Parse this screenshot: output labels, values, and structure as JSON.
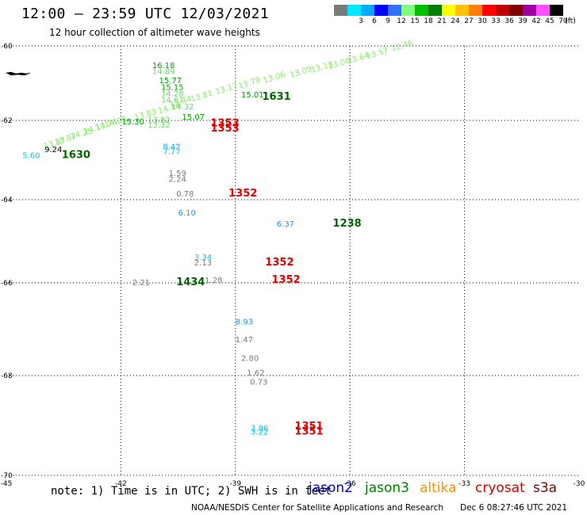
{
  "title": "12:00 – 23:59 UTC 12/03/2021",
  "subtitle": "12 hour collection of altimeter wave heights",
  "color_scale": {
    "unit": "(ft)",
    "bins": [
      {
        "label": "",
        "color": "#7a7a7a"
      },
      {
        "label": "3",
        "color": "#00e8ff"
      },
      {
        "label": "6",
        "color": "#00aaff"
      },
      {
        "label": "9",
        "color": "#0000ff"
      },
      {
        "label": "12",
        "color": "#3070ff"
      },
      {
        "label": "15",
        "color": "#80ff80"
      },
      {
        "label": "18",
        "color": "#00c000"
      },
      {
        "label": "21",
        "color": "#008000"
      },
      {
        "label": "24",
        "color": "#ffff00"
      },
      {
        "label": "27",
        "color": "#ffc000"
      },
      {
        "label": "30",
        "color": "#ff8000"
      },
      {
        "label": "33",
        "color": "#ff0000"
      },
      {
        "label": "36",
        "color": "#c00000"
      },
      {
        "label": "39",
        "color": "#800000"
      },
      {
        "label": "42",
        "color": "#a000a0"
      },
      {
        "label": "45",
        "color": "#ff50ff"
      },
      {
        "label": "70",
        "color": "#000000"
      }
    ]
  },
  "map": {
    "lon_ticks": [
      "-45",
      "-42",
      "-39",
      "-36",
      "-33",
      "-30"
    ],
    "lat_ticks": [
      "-60",
      "-62",
      "-64",
      "-66",
      "-68",
      "-70"
    ]
  },
  "observations": [
    {
      "text": "16.18",
      "lon": -41.18,
      "lat": -60.6,
      "color": "#00a000"
    },
    {
      "text": "14.89",
      "lon": -41.18,
      "lat": -60.75,
      "color": "#66dd66"
    },
    {
      "text": "15.77",
      "lon": -41.0,
      "lat": -61.0,
      "color": "#00a000"
    },
    {
      "text": "15.15",
      "lon": -40.95,
      "lat": -61.18,
      "color": "#00a000"
    },
    {
      "text": "14.28",
      "lon": -40.95,
      "lat": -61.35,
      "color": "#66dd66"
    },
    {
      "text": "14.67",
      "lon": -40.95,
      "lat": -61.52,
      "color": "#66dd66"
    },
    {
      "text": "14.32",
      "lon": -40.68,
      "lat": -61.7,
      "color": "#66dd66"
    },
    {
      "text": "13.82",
      "lon": -41.3,
      "lat": -62.05,
      "color": "#66dd66"
    },
    {
      "text": "13.32",
      "lon": -41.3,
      "lat": -62.18,
      "color": "#66dd66"
    },
    {
      "text": "15.30",
      "lon": -41.98,
      "lat": -62.1,
      "color": "#00a000"
    },
    {
      "text": "15.07",
      "lon": -40.4,
      "lat": -61.98,
      "color": "#00a000"
    },
    {
      "text": "15.01",
      "lon": -38.85,
      "lat": -61.38,
      "color": "#00a000"
    },
    {
      "text": "1631",
      "lon": -38.3,
      "lat": -61.45,
      "color": "#006400",
      "bold": true
    },
    {
      "text": "9.24",
      "lon": -44.0,
      "lat": -62.8,
      "color": "#000000"
    },
    {
      "text": "5.60",
      "lon": -44.58,
      "lat": -62.95,
      "color": "#00c8e8"
    },
    {
      "text": "1630",
      "lon": -43.55,
      "lat": -62.95,
      "color": "#006400",
      "bold": true
    },
    {
      "text": "1353",
      "lon": -39.65,
      "lat": -62.15,
      "color": "#e00000",
      "bold": true
    },
    {
      "text": "1353",
      "lon": -39.65,
      "lat": -62.28,
      "color": "#e00000",
      "bold": true
    },
    {
      "text": "8.42",
      "lon": -40.9,
      "lat": -62.73,
      "color": "#00a0ff"
    },
    {
      "text": "7.77",
      "lon": -40.9,
      "lat": -62.85,
      "color": "#00c8e8"
    },
    {
      "text": "1.59",
      "lon": -40.75,
      "lat": -63.4,
      "color": "#7a7a7a"
    },
    {
      "text": "2.24",
      "lon": -40.75,
      "lat": -63.55,
      "color": "#7a7a7a"
    },
    {
      "text": "0.78",
      "lon": -40.55,
      "lat": -63.92,
      "color": "#7a7a7a"
    },
    {
      "text": "1352",
      "lon": -39.18,
      "lat": -63.92,
      "color": "#e00000",
      "bold": true
    },
    {
      "text": "6.10",
      "lon": -40.5,
      "lat": -64.38,
      "color": "#00a0ff"
    },
    {
      "text": "6.37",
      "lon": -37.92,
      "lat": -64.65,
      "color": "#00a0ff"
    },
    {
      "text": "1238",
      "lon": -36.45,
      "lat": -64.65,
      "color": "#006400",
      "bold": true
    },
    {
      "text": "3.34",
      "lon": -40.08,
      "lat": -65.45,
      "color": "#00c8e8"
    },
    {
      "text": "2.13",
      "lon": -40.08,
      "lat": -65.58,
      "color": "#7a7a7a"
    },
    {
      "text": "1352",
      "lon": -38.22,
      "lat": -65.58,
      "color": "#e00000",
      "bold": true
    },
    {
      "text": "2.21",
      "lon": -41.7,
      "lat": -66.05,
      "color": "#7a7a7a"
    },
    {
      "text": "1434",
      "lon": -40.55,
      "lat": -66.05,
      "color": "#006400",
      "bold": true
    },
    {
      "text": "1.28",
      "lon": -39.8,
      "lat": -66.0,
      "color": "#7a7a7a"
    },
    {
      "text": "1352",
      "lon": -38.05,
      "lat": -66.0,
      "color": "#e00000",
      "bold": true
    },
    {
      "text": "8.93",
      "lon": -39.0,
      "lat": -66.9,
      "color": "#00a0ff"
    },
    {
      "text": "1.47",
      "lon": -39.0,
      "lat": -67.28,
      "color": "#7a7a7a"
    },
    {
      "text": "2.80",
      "lon": -38.85,
      "lat": -67.68,
      "color": "#7a7a7a"
    },
    {
      "text": "1.62",
      "lon": -38.7,
      "lat": -68.0,
      "color": "#7a7a7a"
    },
    {
      "text": "0.73",
      "lon": -38.62,
      "lat": -68.18,
      "color": "#7a7a7a"
    },
    {
      "text": "3.86",
      "lon": -38.6,
      "lat": -69.1,
      "color": "#00c8e8"
    },
    {
      "text": "3.22",
      "lon": -38.6,
      "lat": -69.18,
      "color": "#00c8e8"
    },
    {
      "text": "1351",
      "lon": -37.45,
      "lat": -69.08,
      "color": "#e00000",
      "bold": true
    },
    {
      "text": "1351",
      "lon": -37.45,
      "lat": -69.18,
      "color": "#e00000",
      "bold": true
    }
  ],
  "track": {
    "color": "#88ee66",
    "points": [
      {
        "text": "13.87",
        "lon": -44.0,
        "lat": -62.72
      },
      {
        "text": "13.87",
        "lon": -43.72,
        "lat": -62.62
      },
      {
        "text": "14.25",
        "lon": -43.3,
        "lat": -62.48
      },
      {
        "text": "14.11",
        "lon": -42.95,
        "lat": -62.35
      },
      {
        "text": "14.74",
        "lon": -42.65,
        "lat": -62.25
      },
      {
        "text": "14.28",
        "lon": -42.4,
        "lat": -62.18
      },
      {
        "text": "13.83",
        "lon": -41.62,
        "lat": -62.0
      },
      {
        "text": "14.14",
        "lon": -41.0,
        "lat": -61.82
      },
      {
        "text": "13.44",
        "lon": -40.7,
        "lat": -61.65
      },
      {
        "text": "13.81",
        "lon": -40.15,
        "lat": -61.5
      },
      {
        "text": "13.17",
        "lon": -39.5,
        "lat": -61.3
      },
      {
        "text": "13.79",
        "lon": -38.9,
        "lat": -61.15
      },
      {
        "text": "13.06",
        "lon": -38.25,
        "lat": -61.0
      },
      {
        "text": "13.09",
        "lon": -37.55,
        "lat": -60.85
      },
      {
        "text": "13.13",
        "lon": -37.0,
        "lat": -60.72
      },
      {
        "text": "13.06",
        "lon": -36.55,
        "lat": -60.62
      },
      {
        "text": "13.64",
        "lon": -36.05,
        "lat": -60.48
      },
      {
        "text": "13.57",
        "lon": -35.55,
        "lat": -60.35
      },
      {
        "text": "12.46",
        "lon": -34.9,
        "lat": -60.15
      }
    ]
  },
  "note": "note: 1) Time is in UTC; 2) SWH is in feet",
  "legend": [
    {
      "name": "jason2",
      "color": "#0000c0"
    },
    {
      "name": "jason3",
      "color": "#008000"
    },
    {
      "name": "altika",
      "color": "#ff9000"
    },
    {
      "name": "cryosat",
      "color": "#d00000"
    },
    {
      "name": "s3a",
      "color": "#800000"
    }
  ],
  "footer": {
    "agency": "NOAA/NESDIS Center for Satellite Applications and Research",
    "timestamp": "Dec  6 08:27:46 UTC 2021"
  }
}
